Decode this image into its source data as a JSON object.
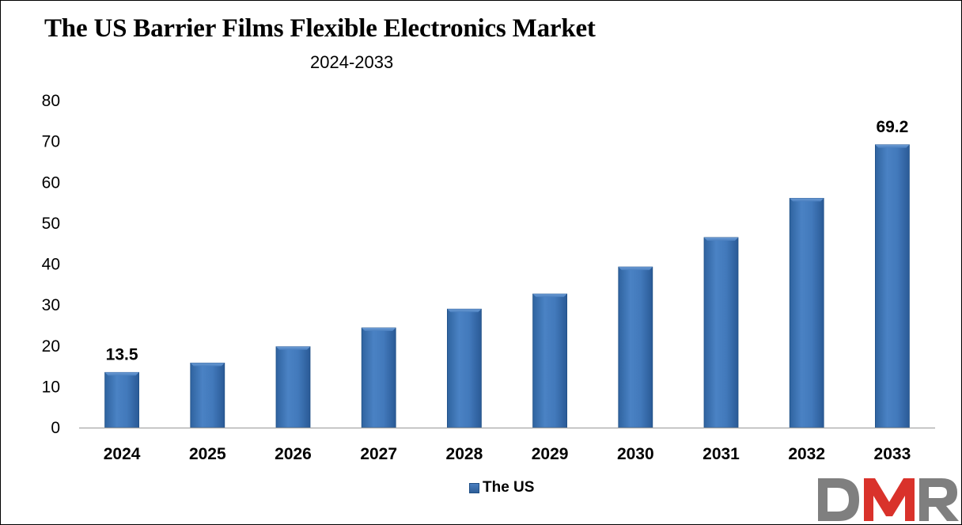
{
  "title": "The US Barrier Films Flexible Electronics Market",
  "subtitle": "2024-2033",
  "legend": {
    "label": "The US"
  },
  "logo": {
    "text": "DMR"
  },
  "colors": {
    "bar_top": "#4f86c6",
    "bar_mid": "#3b73b5",
    "bar_bottom": "#2a5a96",
    "bar_edge": "#1f4f86",
    "axis": "#a6a6a6",
    "logo_grey": "#7f7f7f",
    "logo_red": "#d9322b"
  },
  "chart_data": {
    "type": "bar",
    "title": "The US Barrier Films Flexible Electronics Market",
    "subtitle": "2024-2033",
    "xlabel": "",
    "ylabel": "",
    "categories": [
      "2024",
      "2025",
      "2026",
      "2027",
      "2028",
      "2029",
      "2030",
      "2031",
      "2032",
      "2033"
    ],
    "series": [
      {
        "name": "The US",
        "values": [
          13.5,
          15.8,
          19.8,
          24.4,
          29.0,
          32.7,
          39.3,
          46.5,
          56.1,
          69.2
        ]
      }
    ],
    "data_labels": [
      {
        "category": "2024",
        "text": "13.5"
      },
      {
        "category": "2033",
        "text": "69.2"
      }
    ],
    "ylim": [
      0,
      80
    ],
    "yticks": [
      0,
      10,
      20,
      30,
      40,
      50,
      60,
      70,
      80
    ],
    "grid": false,
    "legend_position": "bottom"
  }
}
